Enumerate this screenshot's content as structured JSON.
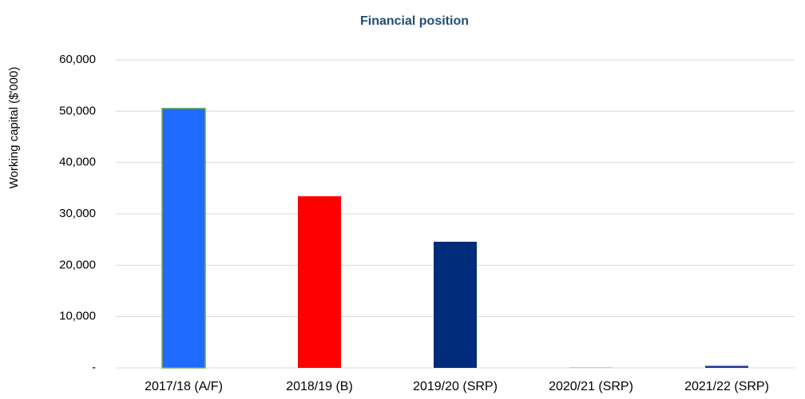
{
  "chart_data": {
    "type": "bar",
    "title": "Financial position",
    "ylabel": "Working capital ($'000)",
    "categories": [
      "2017/18 (A/F)",
      "2018/19 (B)",
      "2019/20 (SRP)",
      "2020/21 (SRP)",
      "2021/22 (SRP)"
    ],
    "values": [
      50540,
      33440,
      24570,
      150,
      400
    ],
    "colors": [
      "#1f6bff",
      "#ff0000",
      "#002a7a",
      "#c8c8d0",
      "#1f3a93"
    ],
    "edgecolors": [
      "#70ad47",
      null,
      null,
      null,
      null
    ],
    "ylim": [
      0,
      60000
    ],
    "yticks": [
      {
        "value": 0,
        "label": "-"
      },
      {
        "value": 10000,
        "label": "10,000"
      },
      {
        "value": 20000,
        "label": "20,000"
      },
      {
        "value": 30000,
        "label": "30,000"
      },
      {
        "value": 40000,
        "label": "40,000"
      },
      {
        "value": 50000,
        "label": "50,000"
      },
      {
        "value": 60000,
        "label": "60,000"
      }
    ],
    "grid": true
  }
}
